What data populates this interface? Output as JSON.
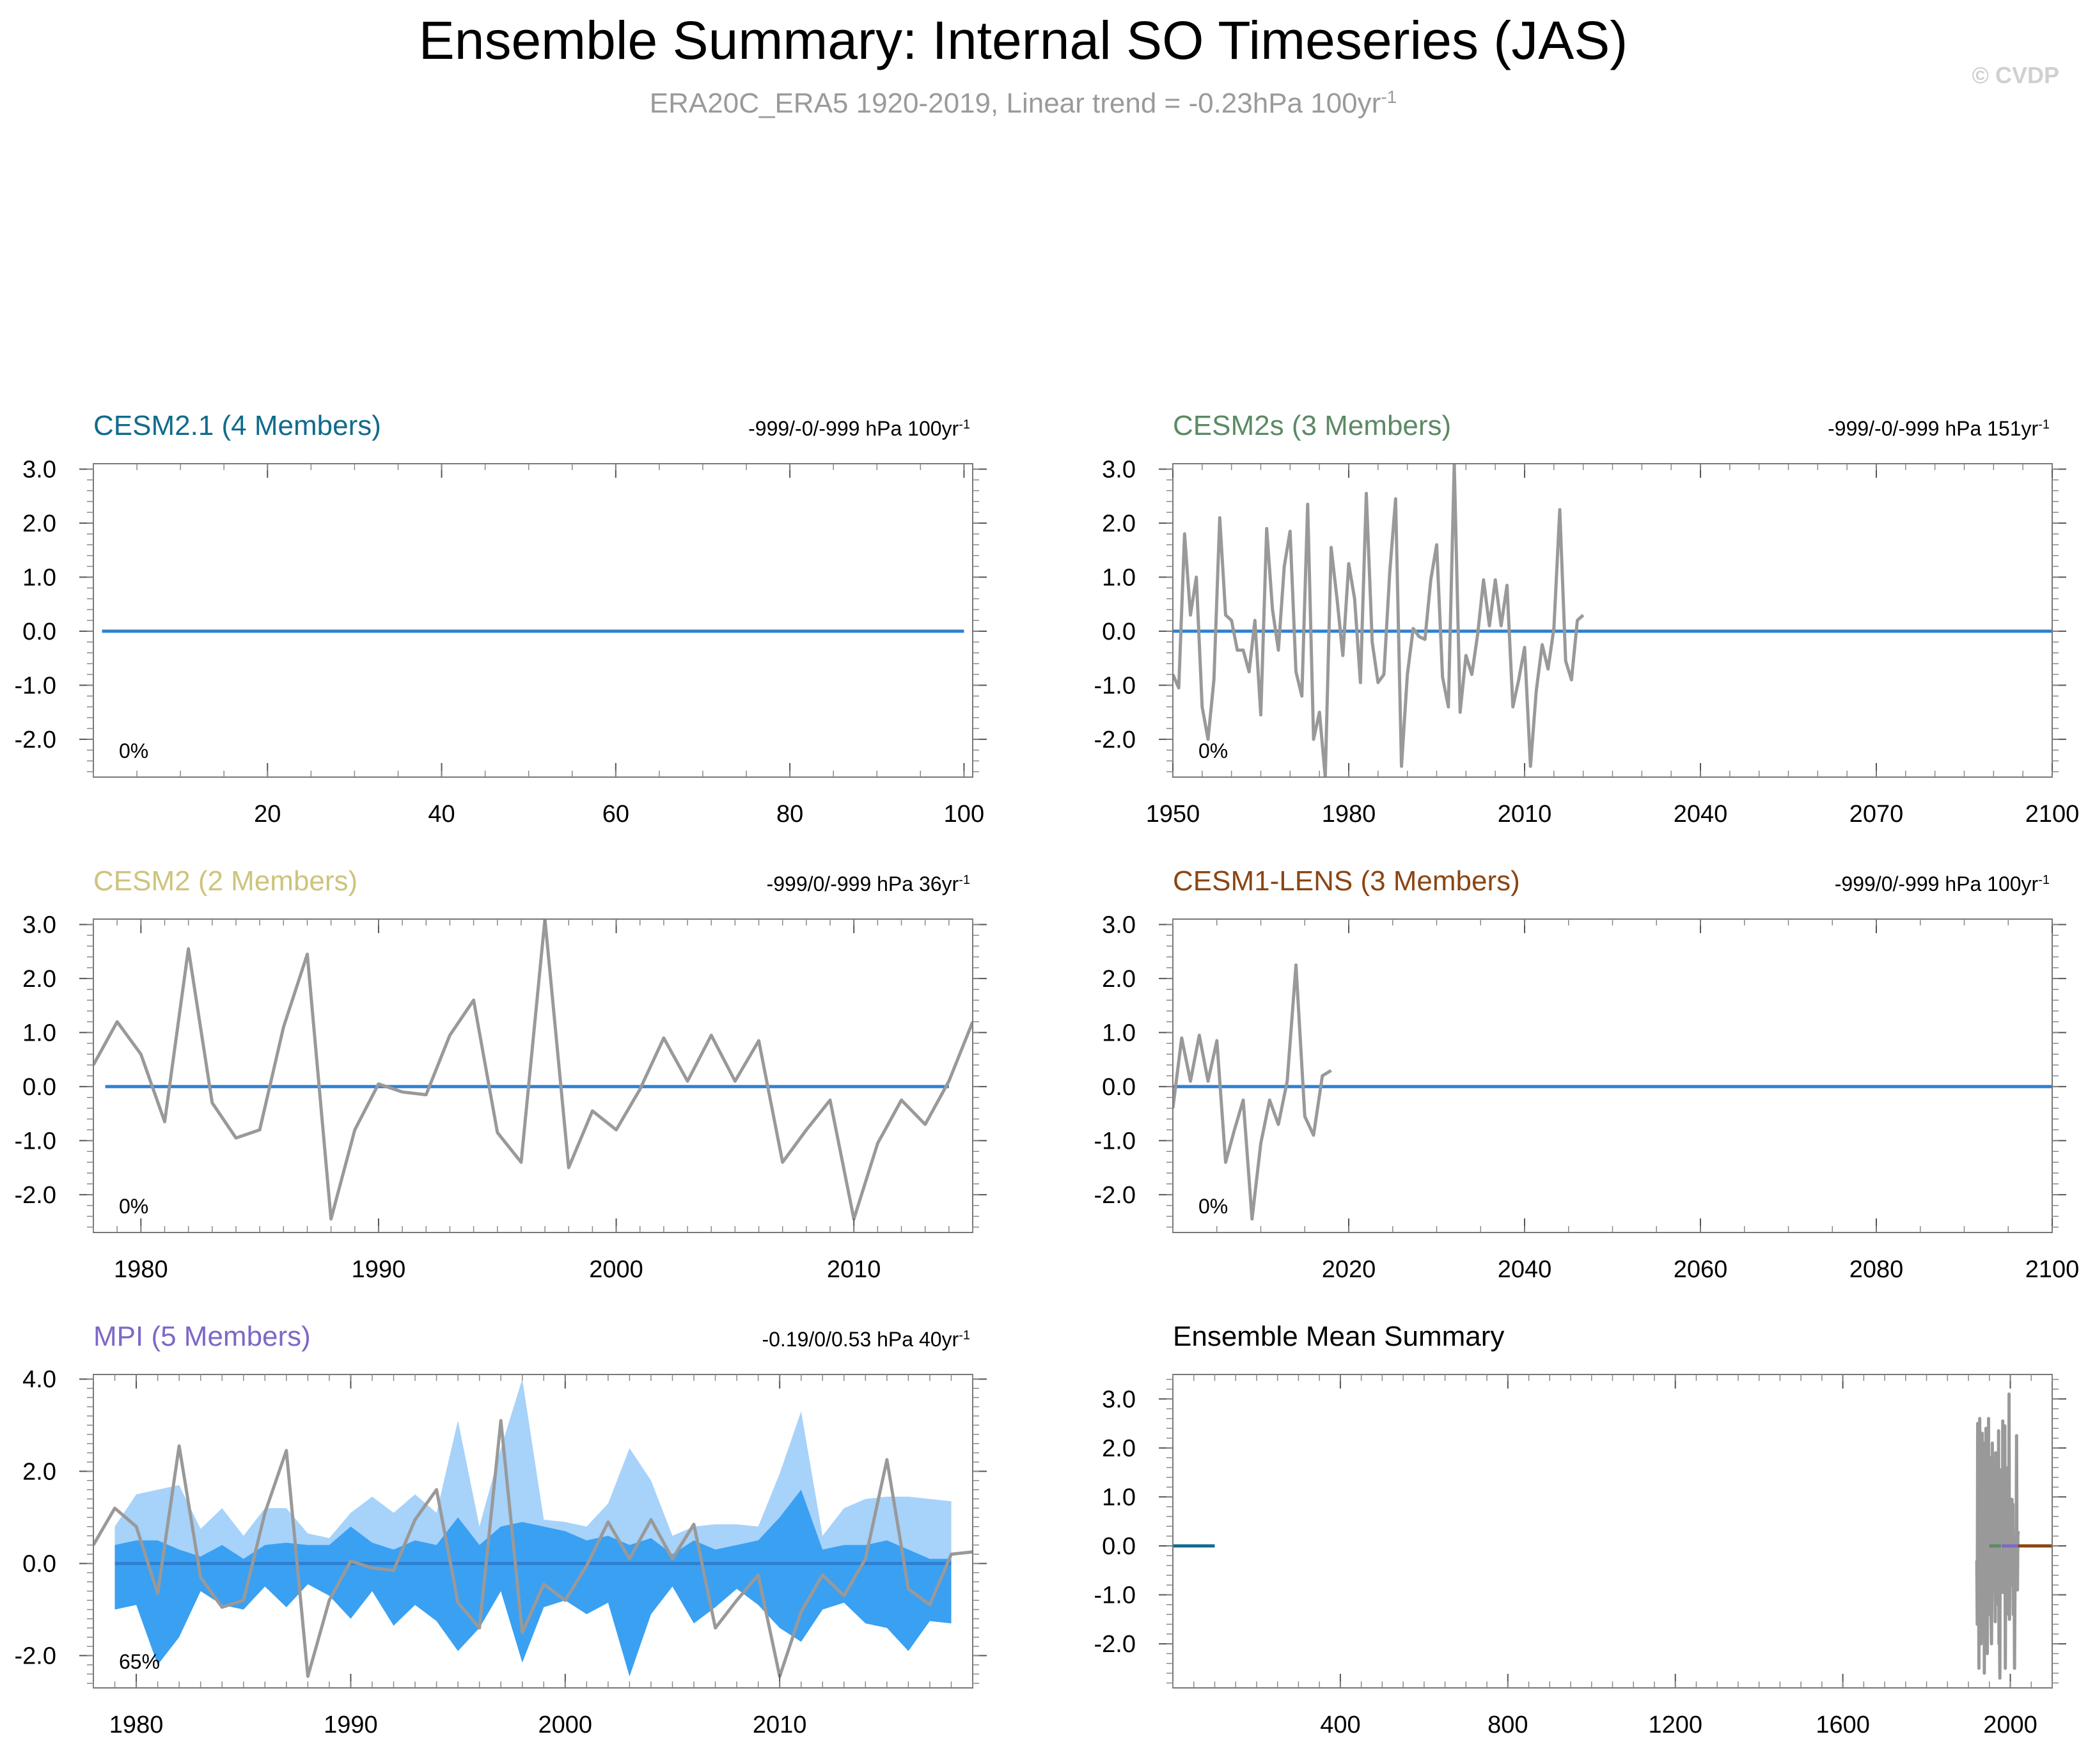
{
  "figure": {
    "title": "Ensemble Summary: Internal SO Timeseries (JAS)",
    "subtitle": "ERA20C_ERA5 1920-2019, Linear trend = -0.23hPa 100yr",
    "subtitle_sup": "-1",
    "watermark": "© CVDP"
  },
  "colors": {
    "obs": "#999999",
    "ens_mean": "#2f80d0",
    "spread_light": "#a7d2fa",
    "spread_dark": "#3aa0f2",
    "zero_line": "#2f80d0",
    "title_black": "#000000"
  },
  "chart_data": [
    {
      "id": "cesm21",
      "type": "line",
      "title": "CESM2.1 (4 Members)",
      "title_color": "#116b8c",
      "trend_label": "-999/-0/-999 hPa 100yr",
      "trend_sup": "-1",
      "pct_label": "0%",
      "xlim": [
        0,
        101
      ],
      "ylim": [
        -2.7,
        3.1
      ],
      "xticks": [
        20,
        40,
        60,
        80,
        100
      ],
      "xtick_labels": [
        "20",
        "40",
        "60",
        "80",
        "100"
      ],
      "yticks": [
        3,
        2,
        1,
        0,
        -1,
        -2
      ],
      "ytick_labels": [
        "3.0",
        "2.0",
        "1.0",
        "0.0",
        "-1.0",
        "-2.0"
      ],
      "minor_x": 5,
      "minor_y": 0.2,
      "mean_line": {
        "x0": 1,
        "x1": 100,
        "y": 0
      },
      "obs": null,
      "spread": null
    },
    {
      "id": "cesm2s",
      "type": "line",
      "title": "CESM2s (3 Members)",
      "title_color": "#5b8a64",
      "trend_label": "-999/-0/-999 hPa 151yr",
      "trend_sup": "-1",
      "pct_label": "0%",
      "xlim": [
        1950,
        2100
      ],
      "ylim": [
        -2.7,
        3.1
      ],
      "xticks": [
        1950,
        1980,
        2010,
        2040,
        2070,
        2100
      ],
      "xtick_labels": [
        "1950",
        "1980",
        "2010",
        "2040",
        "2070",
        "2100"
      ],
      "yticks": [
        3,
        2,
        1,
        0,
        -1,
        -2
      ],
      "ytick_labels": [
        "3.0",
        "2.0",
        "1.0",
        "0.0",
        "-1.0",
        "-2.0"
      ],
      "minor_x": 5,
      "minor_y": 0.2,
      "mean_line": {
        "x0": 1950,
        "x1": 2100,
        "y": 0
      },
      "obs": {
        "x0": 1950,
        "values": [
          -0.8,
          -1.05,
          1.8,
          0.3,
          1.0,
          -1.4,
          -2.0,
          -0.9,
          2.1,
          0.3,
          0.2,
          -0.35,
          -0.35,
          -0.75,
          0.2,
          -1.55,
          1.9,
          0.4,
          -0.35,
          1.2,
          1.85,
          -0.75,
          -1.2,
          2.35,
          -2.0,
          -1.5,
          -2.7,
          1.55,
          0.6,
          -0.45,
          1.25,
          0.6,
          -0.95,
          2.55,
          -0.2,
          -0.95,
          -0.8,
          1.1,
          2.45,
          -2.5,
          -0.8,
          0.05,
          -0.1,
          -0.15,
          0.95,
          1.6,
          -0.85,
          -1.4,
          3.1,
          -1.5,
          -0.45,
          -0.8,
          -0.05,
          0.95,
          0.1,
          0.95,
          0.1,
          0.85,
          -1.4,
          -0.9,
          -0.3,
          -2.5,
          -1.1,
          -0.25,
          -0.7,
          0.05,
          2.25,
          -0.55,
          -0.9,
          0.2,
          0.3
        ]
      },
      "spread": null
    },
    {
      "id": "cesm2",
      "type": "line",
      "title": "CESM2 (2 Members)",
      "title_color": "#cdc47c",
      "trend_label": "-999/0/-999 hPa 36yr",
      "trend_sup": "-1",
      "pct_label": "0%",
      "xlim": [
        1978,
        2015
      ],
      "ylim": [
        -2.7,
        3.1
      ],
      "xticks": [
        1980,
        1990,
        2000,
        2010
      ],
      "xtick_labels": [
        "1980",
        "1990",
        "2000",
        "2010"
      ],
      "yticks": [
        3,
        2,
        1,
        0,
        -1,
        -2
      ],
      "ytick_labels": [
        "3.0",
        "2.0",
        "1.0",
        "0.0",
        "-1.0",
        "-2.0"
      ],
      "minor_x": 1,
      "minor_y": 0.2,
      "mean_line": {
        "x0": 1978.5,
        "x1": 2014,
        "y": 0
      },
      "obs": {
        "x0": 1978,
        "values": [
          0.4,
          1.2,
          0.6,
          -0.65,
          2.55,
          -0.3,
          -0.95,
          -0.8,
          1.1,
          2.45,
          -2.45,
          -0.8,
          0.05,
          -0.1,
          -0.15,
          0.95,
          1.6,
          -0.85,
          -1.4,
          3.1,
          -1.5,
          -0.45,
          -0.8,
          -0.05,
          0.9,
          0.1,
          0.95,
          0.1,
          0.85,
          -1.4,
          -0.8,
          -0.25,
          -2.45,
          -1.05,
          -0.25,
          -0.7,
          0.1,
          1.2
        ]
      },
      "spread": null
    },
    {
      "id": "cesm1lens",
      "type": "line",
      "title": "CESM1-LENS (3 Members)",
      "title_color": "#8b4513",
      "trend_label": "-999/0/-999 hPa 100yr",
      "trend_sup": "-1",
      "pct_label": "0%",
      "xlim": [
        2000,
        2100
      ],
      "ylim": [
        -2.7,
        3.1
      ],
      "xticks": [
        2020,
        2040,
        2060,
        2080,
        2100
      ],
      "xtick_labels": [
        "2020",
        "2040",
        "2060",
        "2080",
        "2100"
      ],
      "yticks": [
        3,
        2,
        1,
        0,
        -1,
        -2
      ],
      "ytick_labels": [
        "3.0",
        "2.0",
        "1.0",
        "0.0",
        "-1.0",
        "-2.0"
      ],
      "minor_x": 5,
      "minor_y": 0.2,
      "mean_line": {
        "x0": 2000,
        "x1": 2100,
        "y": 0
      },
      "obs": {
        "x0": 2000,
        "values": [
          -0.4,
          0.9,
          0.1,
          0.95,
          0.1,
          0.85,
          -1.4,
          -0.8,
          -0.25,
          -2.45,
          -1.05,
          -0.25,
          -0.7,
          0.1,
          2.25,
          -0.55,
          -0.9,
          0.2,
          0.3
        ]
      },
      "spread": null
    },
    {
      "id": "mpi",
      "type": "area",
      "title": "MPI (5 Members)",
      "title_color": "#7f67c8",
      "trend_label": "-0.19/0/0.53 hPa 40yr",
      "trend_sup": "-1",
      "pct_label": "65%",
      "xlim": [
        1978,
        2019
      ],
      "ylim": [
        -2.7,
        4.1
      ],
      "xticks": [
        1980,
        1990,
        2000,
        2010
      ],
      "xtick_labels": [
        "1980",
        "1990",
        "2000",
        "2010"
      ],
      "yticks": [
        4,
        2,
        0,
        -2
      ],
      "ytick_labels": [
        "4.0",
        "2.0",
        "0.0",
        "-2.0"
      ],
      "minor_x": 1,
      "minor_y": 0.2,
      "mean_line": {
        "x0": 1979,
        "x1": 2018,
        "y": 0
      },
      "obs": {
        "x0": 1978,
        "values": [
          0.4,
          1.2,
          0.8,
          -0.65,
          2.55,
          -0.3,
          -0.95,
          -0.8,
          1.1,
          2.45,
          -2.45,
          -0.8,
          0.05,
          -0.1,
          -0.15,
          0.95,
          1.6,
          -0.85,
          -1.4,
          3.1,
          -1.5,
          -0.45,
          -0.8,
          -0.05,
          0.9,
          0.1,
          0.95,
          0.1,
          0.85,
          -1.4,
          -0.8,
          -0.25,
          -2.45,
          -1.05,
          -0.25,
          -0.7,
          0.1,
          2.25,
          -0.55,
          -0.9,
          0.2,
          0.25
        ]
      },
      "spread": {
        "x0": 1979,
        "outer_upper": [
          0.8,
          1.5,
          1.6,
          1.7,
          0.75,
          1.2,
          0.6,
          1.2,
          1.2,
          0.65,
          0.55,
          1.1,
          1.45,
          1.1,
          1.5,
          1.1,
          3.1,
          0.8,
          2.5,
          4.0,
          0.95,
          0.9,
          0.8,
          1.3,
          2.5,
          1.8,
          0.6,
          0.8,
          0.85,
          0.85,
          0.8,
          1.95,
          3.3,
          0.6,
          1.2,
          1.4,
          1.45,
          1.45,
          1.4,
          1.35
        ],
        "outer_lower": [
          -1.0,
          -0.9,
          -2.2,
          -1.6,
          -0.6,
          -0.9,
          -1.0,
          -0.5,
          -0.95,
          -0.45,
          -0.7,
          -1.2,
          -0.6,
          -1.35,
          -0.9,
          -1.25,
          -1.9,
          -1.4,
          -0.6,
          -2.15,
          -0.95,
          -0.8,
          -1.1,
          -0.85,
          -2.45,
          -1.1,
          -0.5,
          -1.3,
          -0.95,
          -0.55,
          -0.9,
          -1.4,
          -1.7,
          -1.0,
          -0.85,
          -1.3,
          -1.4,
          -1.9,
          -1.25,
          -1.3
        ],
        "inner_upper": [
          0.4,
          0.5,
          0.5,
          0.3,
          0.15,
          0.4,
          0.1,
          0.4,
          0.45,
          0.4,
          0.4,
          0.8,
          0.45,
          0.3,
          0.5,
          0.4,
          1.0,
          0.4,
          0.8,
          0.9,
          0.8,
          0.7,
          0.5,
          0.6,
          0.4,
          0.55,
          0.2,
          0.5,
          0.3,
          0.4,
          0.5,
          1.0,
          1.6,
          0.3,
          0.4,
          0.4,
          0.5,
          0.3,
          0.1,
          0.1
        ],
        "inner_lower": [
          -1.0,
          -0.9,
          -2.2,
          -1.6,
          -0.6,
          -0.9,
          -1.0,
          -0.5,
          -0.95,
          -0.45,
          -0.7,
          -1.2,
          -0.6,
          -1.35,
          -0.9,
          -1.25,
          -1.9,
          -1.4,
          -0.6,
          -2.15,
          -0.95,
          -0.8,
          -1.1,
          -0.85,
          -2.45,
          -1.1,
          -0.5,
          -1.3,
          -0.95,
          -0.55,
          -0.9,
          -1.4,
          -1.7,
          -1.0,
          -0.85,
          -1.3,
          -1.4,
          -1.9,
          -1.25,
          -1.3
        ]
      }
    },
    {
      "id": "summary",
      "type": "line",
      "title": "Ensemble Mean Summary",
      "title_color": "#000000",
      "trend_label": "",
      "trend_sup": "",
      "pct_label": "",
      "xlim": [
        0,
        2100
      ],
      "ylim": [
        -2.9,
        3.5
      ],
      "xticks": [
        400,
        800,
        1200,
        1600,
        2000
      ],
      "xtick_labels": [
        "400",
        "800",
        "1200",
        "1600",
        "2000"
      ],
      "yticks": [
        3,
        2,
        1,
        0,
        -1,
        -2
      ],
      "ytick_labels": [
        "3.0",
        "2.0",
        "1.0",
        "0.0",
        "-1.0",
        "-2.0"
      ],
      "minor_x": 50,
      "minor_y": 0.2,
      "mean_line": null,
      "segments": [
        {
          "name": "CESM2.1",
          "x0": 1,
          "x1": 100,
          "y": 0,
          "color": "#116b8c"
        },
        {
          "name": "CESM2s",
          "x0": 1950,
          "x1": 2100,
          "y": 0,
          "color": "#5b8a64"
        },
        {
          "name": "CESM2",
          "x0": 1978,
          "x1": 2014,
          "y": 0,
          "color": "#cdc47c"
        },
        {
          "name": "MPI",
          "x0": 1979,
          "x1": 2018,
          "y": 0,
          "color": "#7f67c8"
        },
        {
          "name": "CESM1-LENS",
          "x0": 2019,
          "x1": 2100,
          "y": 0,
          "color": "#8b4513"
        }
      ],
      "obs": {
        "x0": 1920,
        "values": [
          -0.3,
          -1.6,
          2.5,
          -0.9,
          1.6,
          -2.5,
          0.4,
          2.6,
          -1.1,
          0.9,
          -2.0,
          1.5,
          -0.4,
          2.3,
          -1.8,
          0.6,
          -1.3,
          2.1,
          -2.6,
          1.2,
          0.2,
          -1.9,
          2.4,
          -0.7,
          1.8,
          -2.2,
          0.8,
          -0.5,
          2.6,
          -1.4,
          0.3,
          1.8,
          0.3,
          1.0,
          -1.4,
          -2.0,
          -0.9,
          2.1,
          0.3,
          0.2,
          -0.35,
          -0.35,
          -0.75,
          0.2,
          -1.55,
          1.9,
          0.4,
          -0.35,
          1.2,
          1.85,
          -0.75,
          -1.2,
          2.35,
          -2.0,
          -1.5,
          -2.7,
          1.55,
          0.6,
          -0.45,
          1.25,
          0.6,
          -0.95,
          2.55,
          -0.2,
          -0.95,
          -0.8,
          1.1,
          2.45,
          -2.5,
          -0.8,
          0.05,
          -0.1,
          -0.15,
          0.95,
          1.6,
          -0.85,
          -1.4,
          3.1,
          -1.5,
          -0.45,
          -0.8,
          -0.05,
          0.95,
          0.1,
          0.95,
          0.1,
          0.85,
          -1.4,
          -0.9,
          -0.3,
          -2.5,
          -1.1,
          -0.25,
          -0.7,
          0.05,
          2.25,
          -0.55,
          -0.9,
          0.2,
          0.3
        ]
      },
      "spread": null
    }
  ]
}
